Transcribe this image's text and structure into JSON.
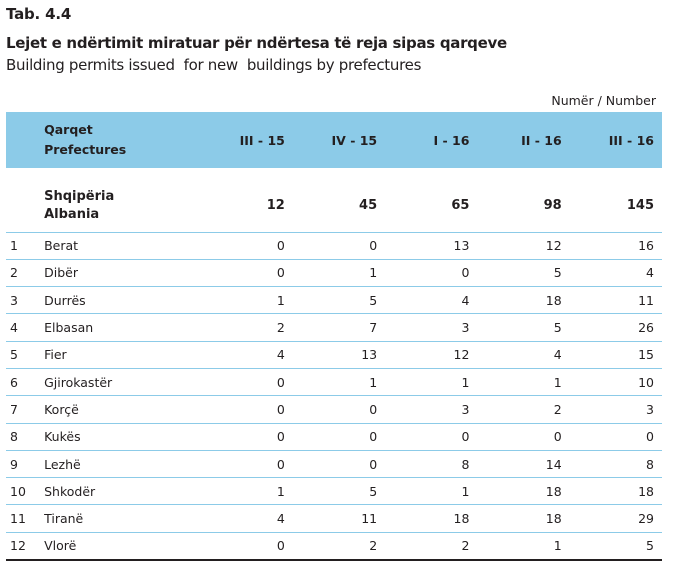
{
  "header": {
    "tab_label": "Tab. 4.4",
    "title_sq": "Lejet e ndërtimit miratuar për ndërtesa të reja sipas qarqeve",
    "title_en": "Building permits issued  for new  buildings by prefectures",
    "unit_note": "Numër / Number"
  },
  "table": {
    "header_name_sq": "Qarqet",
    "header_name_en": "Prefectures",
    "columns": [
      "III - 15",
      "IV - 15",
      "I - 16",
      "II - 16",
      "III - 16"
    ],
    "total": {
      "name_sq": "Shqipëria",
      "name_en": "Albania",
      "values": [
        "12",
        "45",
        "65",
        "98",
        "145"
      ]
    },
    "rows": [
      {
        "num": "1",
        "name": "Berat",
        "values": [
          "0",
          "0",
          "13",
          "12",
          "16"
        ]
      },
      {
        "num": "2",
        "name": "Dibër",
        "values": [
          "0",
          "1",
          "0",
          "5",
          "4"
        ]
      },
      {
        "num": "3",
        "name": "Durrës",
        "values": [
          "1",
          "5",
          "4",
          "18",
          "11"
        ]
      },
      {
        "num": "4",
        "name": "Elbasan",
        "values": [
          "2",
          "7",
          "3",
          "5",
          "26"
        ]
      },
      {
        "num": "5",
        "name": "Fier",
        "values": [
          "4",
          "13",
          "12",
          "4",
          "15"
        ]
      },
      {
        "num": "6",
        "name": "Gjirokastër",
        "values": [
          "0",
          "1",
          "1",
          "1",
          "10"
        ]
      },
      {
        "num": "7",
        "name": "Korçë",
        "values": [
          "0",
          "0",
          "3",
          "2",
          "3"
        ]
      },
      {
        "num": "8",
        "name": "Kukës",
        "values": [
          "0",
          "0",
          "0",
          "0",
          "0"
        ]
      },
      {
        "num": "9",
        "name": "Lezhë",
        "values": [
          "0",
          "0",
          "8",
          "14",
          "8"
        ]
      },
      {
        "num": "10",
        "name": "Shkodër",
        "values": [
          "1",
          "5",
          "1",
          "18",
          "18"
        ]
      },
      {
        "num": "11",
        "name": "Tiranë",
        "values": [
          "4",
          "11",
          "18",
          "18",
          "29"
        ]
      },
      {
        "num": "12",
        "name": "Vlorë",
        "values": [
          "0",
          "2",
          "2",
          "1",
          "5"
        ]
      }
    ]
  }
}
